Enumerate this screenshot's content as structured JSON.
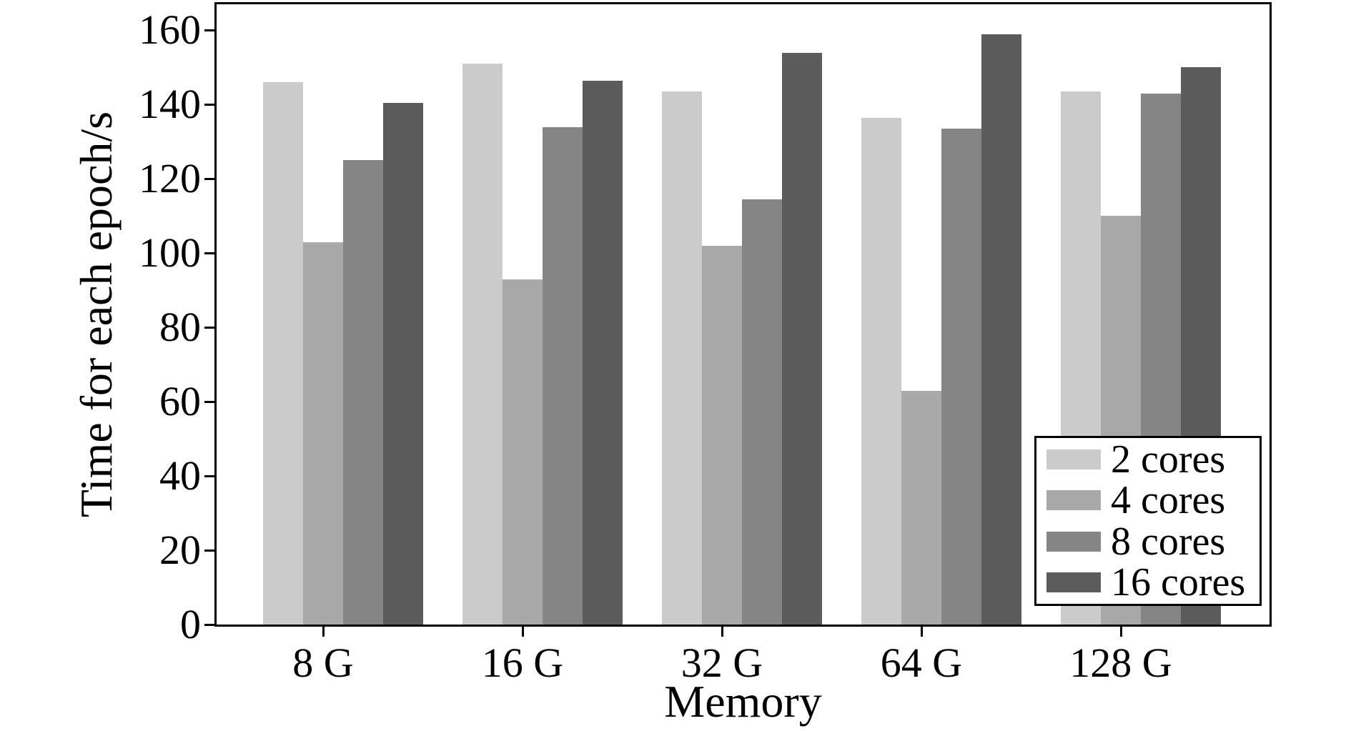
{
  "chart_data": {
    "type": "bar",
    "title": "",
    "xlabel": "Memory",
    "ylabel": "Time for each epoch/s",
    "categories": [
      "8 G",
      "16 G",
      "32 G",
      "64 G",
      "128 G"
    ],
    "series": [
      {
        "name": "2 cores",
        "color": "#cbcbcb",
        "values": [
          146,
          151,
          143.5,
          136.5,
          143.5
        ]
      },
      {
        "name": "4 cores",
        "color": "#a9a9a9",
        "values": [
          103,
          93,
          102,
          63,
          110
        ]
      },
      {
        "name": "8 cores",
        "color": "#858585",
        "values": [
          125,
          134,
          114.5,
          133.5,
          143
        ]
      },
      {
        "name": "16 cores",
        "color": "#5c5c5c",
        "values": [
          140.5,
          146.5,
          154,
          159,
          150
        ]
      }
    ],
    "ylim": [
      0,
      167
    ],
    "yticks": [
      0,
      20,
      40,
      60,
      80,
      100,
      120,
      140,
      160
    ],
    "legend_position": "lower right",
    "grid": false,
    "axis_color": "#000000",
    "background_color": "#ffffff"
  }
}
